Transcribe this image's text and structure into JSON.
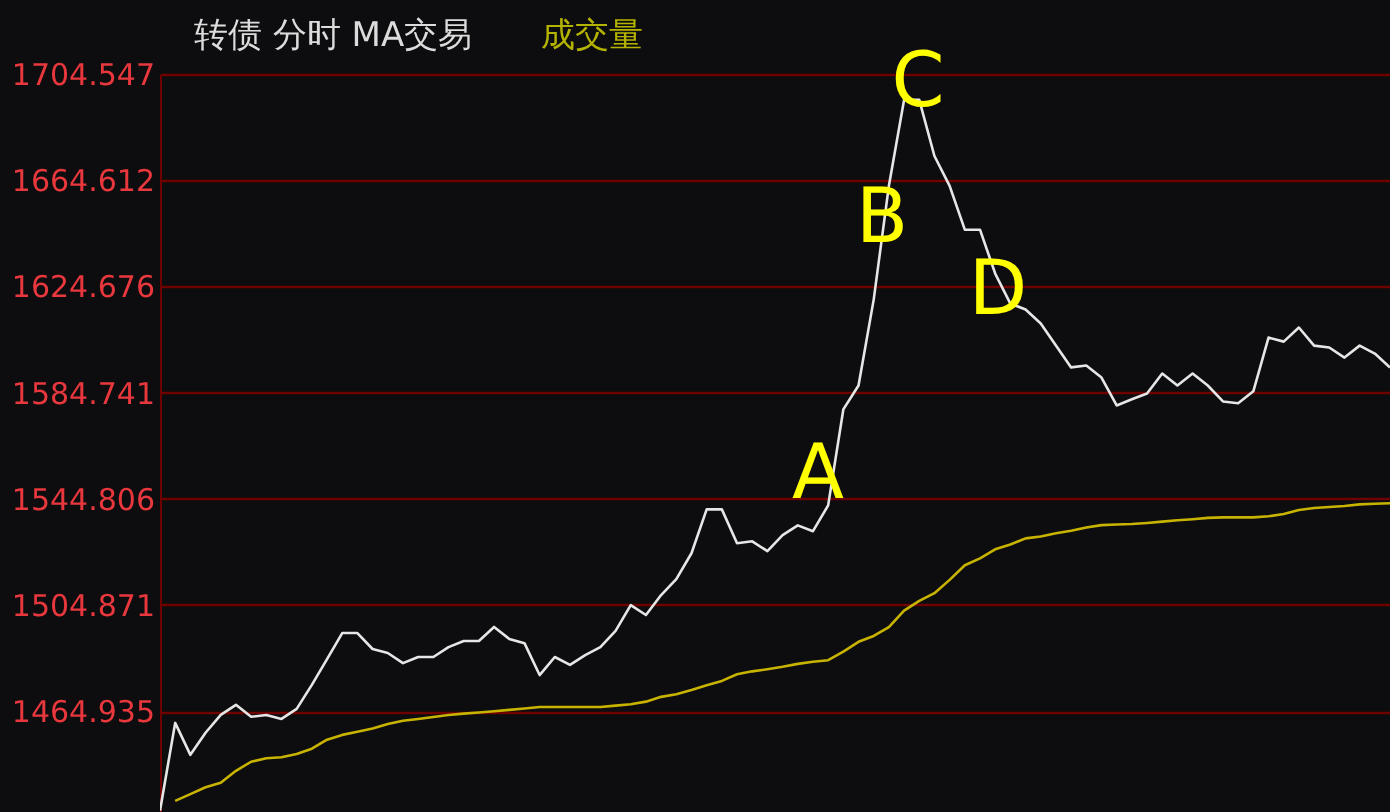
{
  "chart_data": {
    "type": "line",
    "title": "转债  分时  MA交易",
    "annotations": [
      "成交量",
      "A",
      "B",
      "C",
      "D"
    ],
    "categories": [
      null,
      null,
      null,
      null,
      null,
      null,
      null,
      null,
      null,
      null,
      null,
      null,
      null,
      null,
      null,
      null,
      null,
      null,
      null,
      null,
      null,
      null,
      null,
      null,
      null,
      null,
      null,
      null,
      null,
      null,
      null,
      null,
      null,
      null,
      null,
      null,
      null,
      null,
      null,
      null,
      null,
      null,
      null,
      null,
      null,
      null,
      null,
      null,
      null,
      null,
      null,
      null,
      null,
      null,
      null,
      null,
      null,
      null,
      null,
      null,
      null,
      null,
      null,
      null,
      null,
      null,
      null,
      null,
      null,
      null,
      null,
      null,
      null,
      null,
      null,
      null,
      null,
      null,
      null,
      null,
      null,
      null
    ],
    "ylim": [
      1427,
      1704.547
    ],
    "yticks": [
      1464.935,
      1504.871,
      1544.806,
      1584.741,
      1624.676,
      1664.612,
      1704.547
    ],
    "grid": "y",
    "tick_labels": "y",
    "series": [
      {
        "color": "#e6e6e6",
        "values": [
          1427.5,
          1460.5,
          1448.5,
          1456.8,
          1463.5,
          1467.3,
          1462.8,
          1463.5,
          1462.0,
          1465.8,
          1474.8,
          1484.5,
          1494.3,
          1494.3,
          1488.3,
          1486.8,
          1483.0,
          1485.3,
          1485.3,
          1489.0,
          1491.3,
          1491.3,
          1496.6,
          1492.1,
          1490.5,
          1478.5,
          1485.3,
          1482.3,
          1486.0,
          1489.0,
          1495.1,
          1504.8,
          1501.1,
          1508.6,
          1514.6,
          1524.3,
          1540.8,
          1540.8,
          1528.1,
          1528.8,
          1525.1,
          1531.1,
          1534.8,
          1532.6,
          1542.3,
          1578.4,
          1587.4,
          1619.7,
          1662.5,
          1694.8,
          1694.8,
          1673.7,
          1662.5,
          1646.0,
          1646.0,
          1629.5,
          1618.2,
          1616.0,
          1610.7,
          1602.4,
          1594.2,
          1594.9,
          1590.4,
          1579.9,
          1582.2,
          1584.4,
          1591.9,
          1587.4,
          1591.9,
          1587.4,
          1581.4,
          1580.7,
          1585.2,
          1605.4,
          1603.9,
          1609.2,
          1602.4,
          1601.7,
          1597.9,
          1602.4,
          1599.4,
          1594.2
        ]
      },
      {
        "color": "#c8b400",
        "values": [
          null,
          1431.2,
          1433.7,
          1436.3,
          1438.0,
          1442.5,
          1445.9,
          1447.2,
          1447.6,
          1448.8,
          1450.8,
          1454.2,
          1456.0,
          1457.2,
          1458.4,
          1460.1,
          1461.3,
          1462.0,
          1462.7,
          1463.5,
          1464.0,
          1464.4,
          1464.9,
          1465.4,
          1465.9,
          1466.5,
          1466.5,
          1466.5,
          1466.5,
          1466.5,
          1467.0,
          1467.5,
          1468.5,
          1470.3,
          1471.3,
          1472.9,
          1474.7,
          1476.3,
          1478.8,
          1479.9,
          1480.7,
          1481.6,
          1482.7,
          1483.5,
          1484.1,
          1487.3,
          1491.0,
          1493.2,
          1496.5,
          1502.7,
          1506.4,
          1509.3,
          1514.3,
          1519.8,
          1522.4,
          1525.8,
          1527.6,
          1529.9,
          1530.6,
          1531.8,
          1532.8,
          1534.0,
          1534.9,
          1535.1,
          1535.3,
          1535.7,
          1536.2,
          1536.7,
          1537.1,
          1537.6,
          1537.8,
          1537.8,
          1537.8,
          1538.2,
          1539.1,
          1540.6,
          1541.3,
          1541.7,
          1542.1,
          1542.7,
          1542.9,
          1543.1
        ]
      }
    ]
  }
}
